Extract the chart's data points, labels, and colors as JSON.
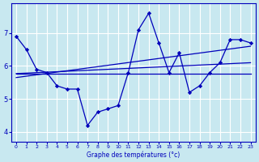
{
  "xlabel": "Graphe des températures (°c)",
  "background_color": "#c8e8f0",
  "line_color": "#0000bb",
  "grid_color": "#ffffff",
  "xlim": [
    -0.5,
    23.5
  ],
  "ylim": [
    3.7,
    7.9
  ],
  "yticks": [
    4,
    5,
    6,
    7
  ],
  "xticks": [
    0,
    1,
    2,
    3,
    4,
    5,
    6,
    7,
    8,
    9,
    10,
    11,
    12,
    13,
    14,
    15,
    16,
    17,
    18,
    19,
    20,
    21,
    22,
    23
  ],
  "main_curve": {
    "x": [
      0,
      1,
      2,
      3,
      4,
      5,
      6,
      7,
      8,
      9,
      10,
      11,
      12,
      13,
      14,
      15,
      16,
      17,
      18,
      19,
      20,
      21,
      22,
      23
    ],
    "y": [
      6.9,
      6.5,
      5.9,
      5.8,
      5.4,
      5.3,
      5.3,
      4.2,
      4.6,
      4.7,
      4.8,
      5.8,
      7.1,
      7.6,
      6.7,
      5.8,
      6.4,
      5.2,
      5.4,
      5.8,
      6.1,
      6.8,
      6.8,
      6.7
    ]
  },
  "trend_lines": [
    {
      "x": [
        0,
        23
      ],
      "y": [
        5.77,
        5.77
      ]
    },
    {
      "x": [
        0,
        23
      ],
      "y": [
        5.77,
        6.1
      ]
    },
    {
      "x": [
        0,
        23
      ],
      "y": [
        5.65,
        6.6
      ]
    }
  ]
}
